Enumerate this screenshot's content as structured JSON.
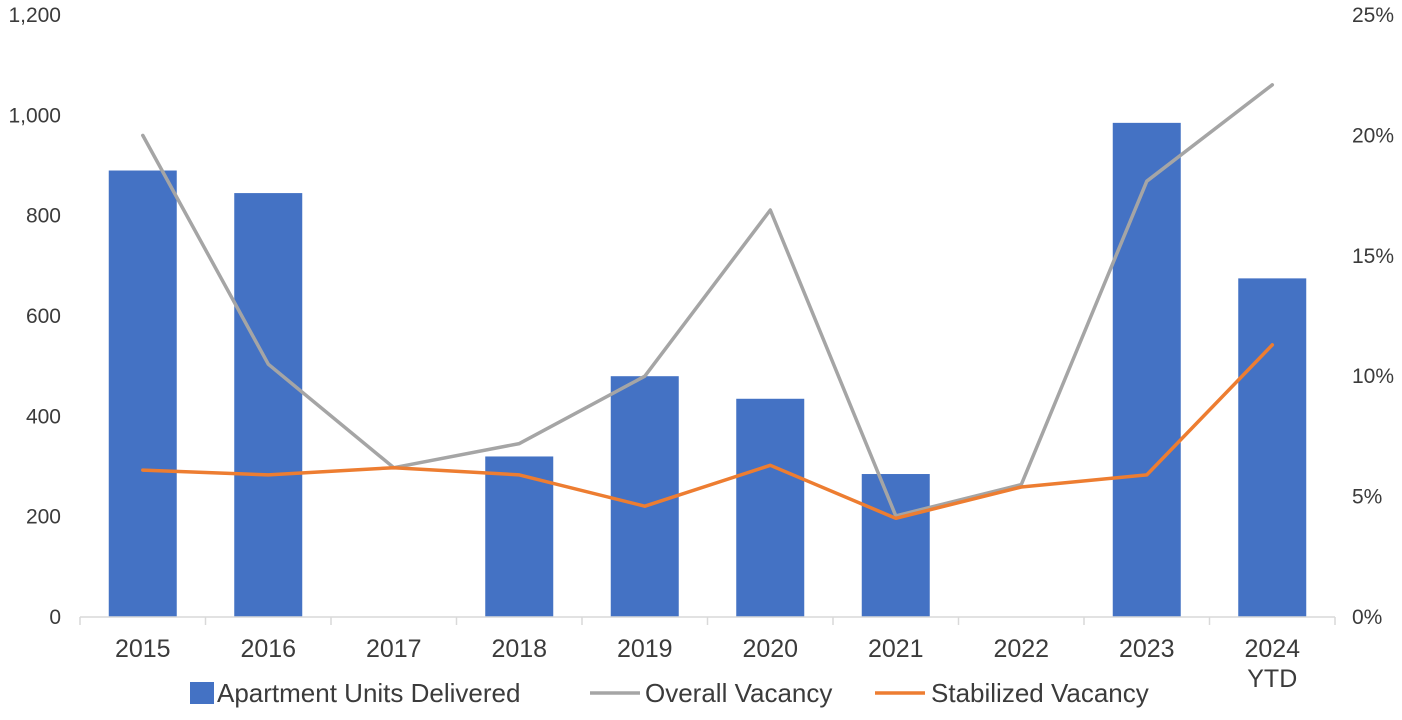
{
  "chart_data": {
    "type": "bar",
    "categories": [
      "2015",
      "2016",
      "2017",
      "2018",
      "2019",
      "2020",
      "2021",
      "2022",
      "2023",
      "2024\nYTD"
    ],
    "series": [
      {
        "name": "Apartment Units Delivered",
        "kind": "bar",
        "axis": "left",
        "color": "#4472C4",
        "values": [
          890,
          845,
          0,
          320,
          480,
          435,
          285,
          0,
          985,
          675
        ]
      },
      {
        "name": "Overall Vacancy",
        "kind": "line",
        "axis": "right",
        "color": "#A5A5A5",
        "values": [
          20.0,
          10.5,
          6.2,
          7.2,
          10.0,
          16.9,
          4.2,
          5.5,
          18.1,
          22.1
        ]
      },
      {
        "name": "Stabilized Vacancy",
        "kind": "line",
        "axis": "right",
        "color": "#ED7D31",
        "values": [
          6.1,
          5.9,
          6.2,
          5.9,
          4.6,
          6.3,
          4.1,
          5.4,
          5.9,
          11.3
        ]
      }
    ],
    "y_left": {
      "ylim": [
        0,
        1200
      ],
      "ticks": [
        0,
        200,
        400,
        600,
        800,
        1000,
        1200
      ],
      "tick_labels": [
        "0",
        "200",
        "400",
        "600",
        "800",
        "1,000",
        "1,200"
      ]
    },
    "y_right": {
      "ylim": [
        0,
        25
      ],
      "ticks": [
        0,
        5,
        10,
        15,
        20,
        25
      ],
      "tick_labels": [
        "0%",
        "5%",
        "10%",
        "15%",
        "20%",
        "25%"
      ]
    },
    "title": "",
    "xlabel": "",
    "ylabel": "",
    "grid": false,
    "legend_position": "bottom",
    "colors": {
      "axis": "#D9D9D9",
      "text": "#3B3B3B"
    }
  }
}
